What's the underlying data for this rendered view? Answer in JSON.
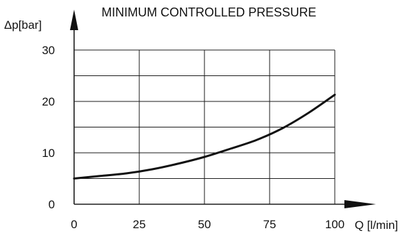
{
  "chart_data": {
    "type": "line",
    "title": "MINIMUM CONTROLLED PRESSURE",
    "xlabel": "Q [l/min]",
    "ylabel": "Δp[bar]",
    "xlim": [
      0,
      100
    ],
    "ylim": [
      0,
      30
    ],
    "x_ticks": [
      "0",
      "25",
      "50",
      "75",
      "100"
    ],
    "y_ticks": [
      "0",
      "10",
      "20",
      "30"
    ],
    "grid": true,
    "series": [
      {
        "x": [
          0,
          10,
          20,
          30,
          40,
          50,
          60,
          70,
          80,
          90,
          100
        ],
        "y": [
          5.0,
          5.5,
          6.0,
          6.8,
          7.9,
          9.2,
          10.8,
          12.5,
          14.8,
          17.8,
          21.3
        ]
      }
    ]
  }
}
